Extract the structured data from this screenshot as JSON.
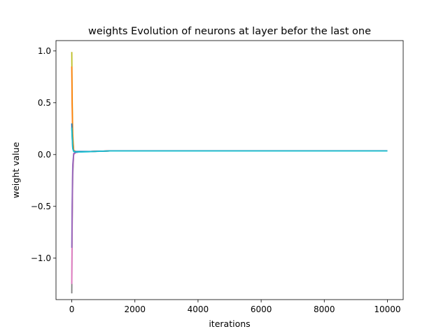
{
  "chart_data": {
    "type": "line",
    "title": "weights Evolution of neurons at layer befor the last one",
    "xlabel": "iterations",
    "ylabel": "weight value",
    "xlim": [
      -500,
      10500
    ],
    "ylim": [
      -1.4,
      1.1
    ],
    "xticks": [
      0,
      2000,
      4000,
      6000,
      8000,
      10000
    ],
    "yticks": [
      -1.0,
      -0.5,
      0.0,
      0.5,
      1.0
    ],
    "xtick_labels": [
      "0",
      "2000",
      "4000",
      "6000",
      "8000",
      "10000"
    ],
    "ytick_labels": [
      "−1.0",
      "−0.5",
      "0.0",
      "0.5",
      "1.0"
    ],
    "grid": false,
    "series": [
      {
        "color": "#bcbd22",
        "x": [
          0,
          10,
          30,
          60,
          120,
          300,
          600,
          1200,
          3000,
          10000
        ],
        "y": [
          0.99,
          0.6,
          0.2,
          0.04,
          0.03,
          0.03,
          0.03,
          0.035,
          0.035,
          0.035
        ]
      },
      {
        "color": "#7f7f7f",
        "x": [
          0,
          10,
          30,
          60,
          120,
          300,
          600,
          1200,
          3000,
          10000
        ],
        "y": [
          -1.34,
          -0.8,
          -0.2,
          0.0,
          0.02,
          0.03,
          0.03,
          0.035,
          0.035,
          0.035
        ]
      },
      {
        "color": "#e377c2",
        "x": [
          0,
          10,
          30,
          60,
          120,
          300,
          600,
          1200,
          3000,
          10000
        ],
        "y": [
          -1.25,
          -0.7,
          -0.15,
          0.0,
          0.02,
          0.03,
          0.03,
          0.035,
          0.035,
          0.035
        ]
      },
      {
        "color": "#ff7f0e",
        "x": [
          0,
          10,
          30,
          60,
          120,
          300,
          600,
          1200,
          3000,
          10000
        ],
        "y": [
          0.85,
          0.5,
          0.15,
          0.04,
          0.03,
          0.03,
          0.03,
          0.035,
          0.035,
          0.035
        ]
      },
      {
        "color": "#9467bd",
        "x": [
          0,
          10,
          30,
          60,
          120,
          300,
          600,
          1200,
          3000,
          10000
        ],
        "y": [
          -0.9,
          -0.5,
          -0.1,
          0.01,
          0.02,
          0.03,
          0.03,
          0.035,
          0.035,
          0.035
        ]
      },
      {
        "color": "#1f77b4",
        "x": [
          0,
          10,
          30,
          60,
          120,
          300,
          600,
          1200,
          3000,
          10000
        ],
        "y": [
          0.3,
          0.2,
          0.06,
          0.03,
          0.03,
          0.03,
          0.03,
          0.035,
          0.035,
          0.035
        ]
      },
      {
        "color": "#17becf",
        "x": [
          0,
          10,
          30,
          60,
          120,
          300,
          600,
          1200,
          3000,
          10000
        ],
        "y": [
          0.26,
          0.18,
          0.06,
          0.03,
          0.025,
          0.025,
          0.028,
          0.035,
          0.035,
          0.035
        ]
      }
    ]
  }
}
